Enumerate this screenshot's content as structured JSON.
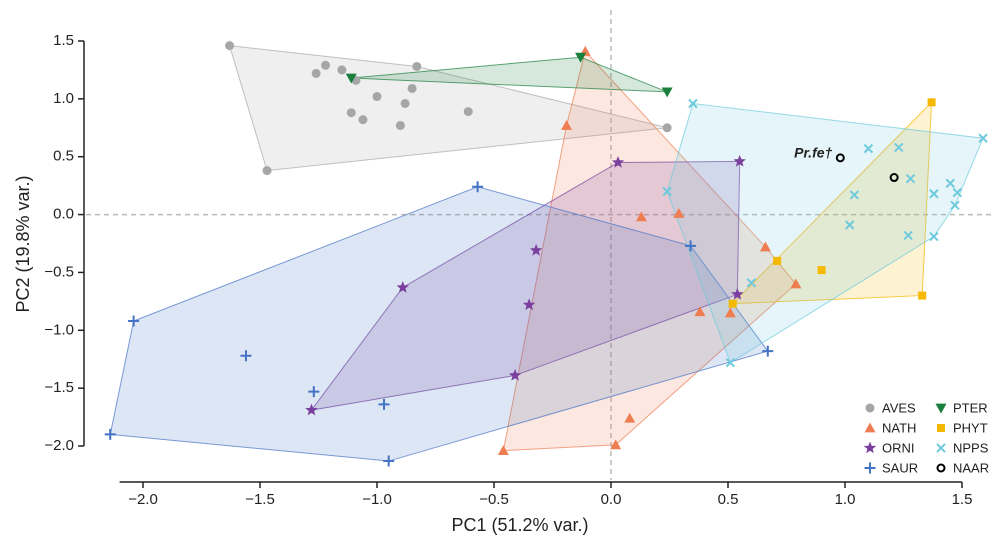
{
  "chart_data": {
    "type": "scatter",
    "xlabel": "PC1 (51.2% var.)",
    "ylabel": "PC2 (19.8% var.)",
    "xlim": [
      -2.1,
      1.5
    ],
    "ylim": [
      -2.0,
      1.5
    ],
    "xticks": [
      {
        "value": -2,
        "label": "−2.0"
      },
      {
        "value": -1.5,
        "label": "−1.5"
      },
      {
        "value": -1,
        "label": "−1.0"
      },
      {
        "value": -0.5,
        "label": "−0.5"
      },
      {
        "value": 0,
        "label": "0.0"
      },
      0.5,
      {
        "value": 1,
        "label": "1.0"
      },
      1.5
    ],
    "yticks": [
      {
        "value": -2,
        "label": "−2.0"
      },
      {
        "value": -1.5,
        "label": "−1.5"
      },
      {
        "value": -1,
        "label": "−1.0"
      },
      {
        "value": -0.5,
        "label": "−0.5"
      },
      {
        "value": 0,
        "label": "0.0"
      },
      0.5,
      {
        "value": 1,
        "label": "1.0"
      },
      1.5
    ],
    "zero_lines": true,
    "hulls": true,
    "legend": "lower right",
    "annotations": [
      {
        "text": "Pr.fe†",
        "x": 0.98,
        "y": 0.49
      }
    ],
    "series": [
      {
        "name": "AVES",
        "color": "#a6a6a6",
        "marker": "circle",
        "x": [
          -1.63,
          -1.22,
          -1.26,
          -1.15,
          -1.09,
          -0.83,
          -0.85,
          -1.0,
          -0.88,
          -1.11,
          -1.06,
          -0.9,
          -0.61,
          0.24,
          -1.47
        ],
        "values": [
          1.46,
          1.29,
          1.22,
          1.25,
          1.16,
          1.28,
          1.09,
          1.02,
          0.96,
          0.88,
          0.82,
          0.77,
          0.89,
          0.75,
          0.38
        ]
      },
      {
        "name": "NATH",
        "color": "#ee7d52",
        "marker": "triangle-up",
        "x": [
          -0.11,
          -0.19,
          0.13,
          0.29,
          0.66,
          0.79,
          0.38,
          0.51,
          0.08,
          0.02,
          -0.46
        ],
        "values": [
          1.41,
          0.77,
          -0.02,
          0.01,
          -0.28,
          -0.6,
          -0.84,
          -0.85,
          -1.76,
          -1.99,
          -2.04
        ]
      },
      {
        "name": "ORNI",
        "color": "#7b3f9e",
        "marker": "star",
        "x": [
          0.03,
          0.55,
          -0.32,
          -0.89,
          -0.35,
          0.54,
          -0.41,
          -1.28
        ],
        "values": [
          0.45,
          0.46,
          -0.31,
          -0.63,
          -0.78,
          -0.69,
          -1.39,
          -1.69
        ]
      },
      {
        "name": "SAUR",
        "color": "#4472c4",
        "marker": "plus",
        "x": [
          -0.57,
          0.34,
          -2.04,
          -1.56,
          -1.27,
          -0.97,
          -0.95,
          -2.14,
          0.67
        ],
        "values": [
          0.24,
          -0.27,
          -0.92,
          -1.22,
          -1.53,
          -1.64,
          -2.13,
          -1.9,
          -1.18
        ]
      },
      {
        "name": "PTER",
        "color": "#1a7f3c",
        "marker": "triangle-down",
        "x": [
          -1.11,
          -0.13,
          0.24
        ],
        "values": [
          1.18,
          1.36,
          1.06
        ]
      },
      {
        "name": "PHYT",
        "color": "#f5b800",
        "marker": "square",
        "x": [
          1.37,
          0.71,
          0.9,
          1.33,
          0.52
        ],
        "values": [
          0.97,
          -0.4,
          -0.48,
          -0.7,
          -0.77
        ]
      },
      {
        "name": "NPPS",
        "color": "#6ecadc",
        "marker": "x",
        "x": [
          0.35,
          1.59,
          1.1,
          1.23,
          1.28,
          1.45,
          1.48,
          1.38,
          1.04,
          1.47,
          0.24,
          1.02,
          1.27,
          1.38,
          0.6,
          0.51
        ],
        "values": [
          0.96,
          0.66,
          0.57,
          0.58,
          0.31,
          0.27,
          0.19,
          0.18,
          0.17,
          0.08,
          0.2,
          -0.09,
          -0.18,
          -0.19,
          -0.59,
          -1.28
        ]
      },
      {
        "name": "NAAR",
        "color": "#000000",
        "marker": "open-circle",
        "x": [
          0.98,
          1.21
        ],
        "values": [
          0.49,
          0.32
        ]
      }
    ]
  }
}
